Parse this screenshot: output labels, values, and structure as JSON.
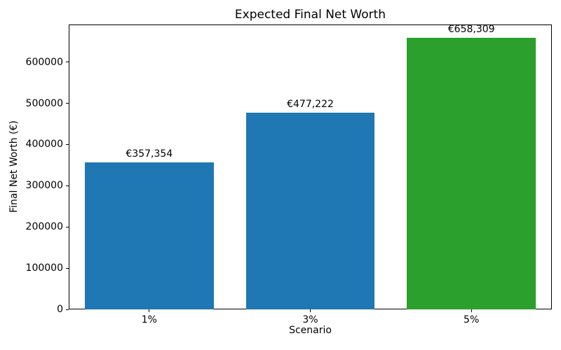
{
  "chart_data": {
    "type": "bar",
    "title": "Expected Final Net Worth",
    "xlabel": "Scenario",
    "ylabel": "Final Net Worth (€)",
    "categories": [
      "1%",
      "3%",
      "5%"
    ],
    "values": [
      357354,
      477222,
      658309
    ],
    "bar_labels": [
      "€357,354",
      "€477,222",
      "€658,309"
    ],
    "bar_colors": [
      "#1f77b4",
      "#1f77b4",
      "#2ca02c"
    ],
    "yticks": [
      0,
      100000,
      200000,
      300000,
      400000,
      500000,
      600000
    ],
    "ylim": [
      0,
      691224
    ],
    "xlim_units": [
      -0.5,
      2.5
    ],
    "bar_width_ratio": 0.8,
    "grid": false,
    "legend": false,
    "background_color": "#ffffff",
    "text_color": "#000000"
  }
}
